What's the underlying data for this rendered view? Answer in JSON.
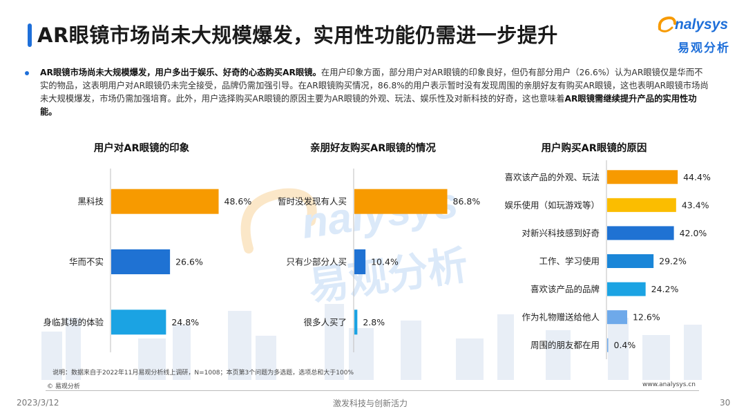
{
  "header": {
    "title": "AR眼镜市场尚未大规模爆发，实用性功能仍需进一步提升",
    "logo_en": "nalysys",
    "logo_cn": "易观分析"
  },
  "summary": {
    "lead_bold": "AR眼镜市场尚未大规模爆发，用户多出于娱乐、好奇的心态购买AR眼镜。",
    "body": "在用户印象方面，部分用户对AR眼镜的印象良好，但仍有部分用户（26.6%）认为AR眼镜仅是华而不实的物品，这表明用户对AR眼镜仍未完全接受，品牌仍需加强引导。在AR眼镜购买情况，86.8%的用户表示暂时没有发现周围的亲朋好友有购买AR眼镜，这也表明AR眼镜市场尚未大规模爆发，市场仍需加强培育。此外，用户选择购买AR眼镜的原因主要为AR眼镜的外观、玩法、娱乐性及对新科技的好奇，这也意味着",
    "tail_bold": "AR眼镜需继续提升产品的实用性功能。"
  },
  "watermark": {
    "en": "nalysys",
    "cn": "易观分析"
  },
  "chart_data": [
    {
      "type": "bar",
      "orientation": "horizontal",
      "title": "用户对AR眼镜的印象",
      "categories": [
        "黑科技",
        "华而不实",
        "身临其境的体验"
      ],
      "values": [
        48.6,
        26.6,
        24.8
      ],
      "value_labels": [
        "48.6%",
        "26.6%",
        "24.8%"
      ],
      "colors": [
        "#f79a00",
        "#1f72d3",
        "#1ba3e3"
      ],
      "xlim": [
        0,
        100
      ]
    },
    {
      "type": "bar",
      "orientation": "horizontal",
      "title": "亲朋好友购买AR眼镜的情况",
      "categories": [
        "暂时没发现有人买",
        "只有少部分人买",
        "很多人买了"
      ],
      "values": [
        86.8,
        10.4,
        2.8
      ],
      "value_labels": [
        "86.8%",
        "10.4%",
        "2.8%"
      ],
      "colors": [
        "#f79a00",
        "#1f72d3",
        "#1ba3e3"
      ],
      "xlim": [
        0,
        100
      ]
    },
    {
      "type": "bar",
      "orientation": "horizontal",
      "title": "用户购买AR眼镜的原因",
      "categories": [
        "喜欢该产品的外观、玩法",
        "娱乐使用（如玩游戏等）",
        "对新兴科技感到好奇",
        "工作、学习使用",
        "喜欢该产品的品牌",
        "作为礼物赠送给他人",
        "周围的朋友都在用"
      ],
      "values": [
        44.4,
        43.4,
        42.0,
        29.2,
        24.2,
        12.6,
        0.4
      ],
      "value_labels": [
        "44.4%",
        "43.4%",
        "42.0%",
        "29.2%",
        "24.2%",
        "12.6%",
        "0.4%"
      ],
      "colors": [
        "#f79a00",
        "#fbbd00",
        "#1f72d3",
        "#1a86d8",
        "#1ba3e3",
        "#6ea9ea",
        "#6ea9ea"
      ],
      "xlim": [
        0,
        100
      ]
    }
  ],
  "footer": {
    "note": "说明：数据来自于2022年11月易观分析线上调研，N=1008；本页第3个问题为多选题，选项总和大于100%",
    "copyright": "© 易观分析",
    "website": "www.analysys.cn",
    "date": "2023/3/12",
    "slogan": "激发科技与创新活力",
    "page": "30"
  }
}
